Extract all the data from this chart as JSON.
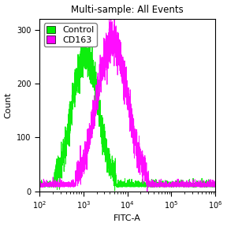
{
  "title": "Multi-sample: All Events",
  "xlabel": "FITC-A",
  "ylabel": "Count",
  "xlim": [
    100,
    1000000
  ],
  "ylim": [
    0,
    320
  ],
  "yticks": [
    0,
    100,
    200,
    300
  ],
  "background_color": "#ffffff",
  "plot_bg_color": "#ffffff",
  "control_color": "#00ee00",
  "cd163_color": "#ff00ff",
  "control_peak_x": 1100,
  "control_peak_count": 255,
  "cd163_peak_x": 4500,
  "cd163_peak_count": 278,
  "control_sigma_log": 0.3,
  "cd163_sigma_log": 0.35,
  "noise_amplitude": 12,
  "baseline": 8,
  "legend_labels": [
    "Control",
    "CD163"
  ],
  "legend_colors": [
    "#00ee00",
    "#ff00ff"
  ],
  "title_fontsize": 8.5,
  "label_fontsize": 8,
  "tick_fontsize": 7,
  "legend_fontsize": 8
}
